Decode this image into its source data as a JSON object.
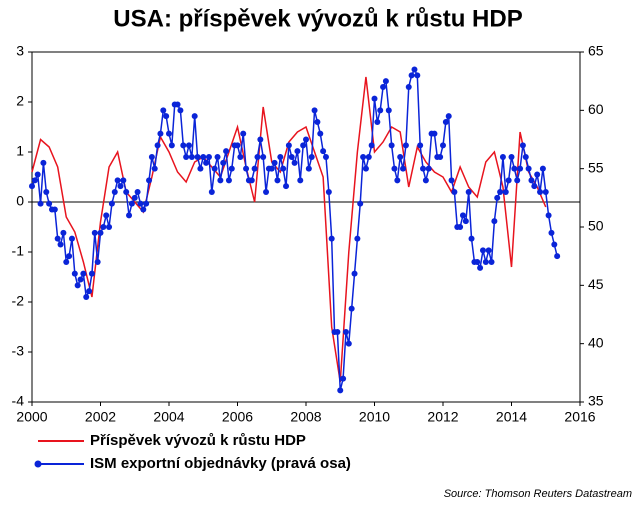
{
  "chart_data": {
    "type": "line",
    "title": "USA: příspěvek vývozů k růstu HDP",
    "source": "Source: Thomson Reuters Datastream",
    "xlim": [
      2000,
      2016
    ],
    "xticks": [
      2000,
      2002,
      2004,
      2006,
      2008,
      2010,
      2012,
      2014,
      2016
    ],
    "ylim": [
      -4,
      3
    ],
    "yticks": [
      -4,
      -3,
      -2,
      -1,
      0,
      1,
      2,
      3
    ],
    "y2lim": [
      35,
      65
    ],
    "y2ticks": [
      35,
      40,
      45,
      50,
      55,
      60,
      65
    ],
    "series": [
      {
        "name": "Příspěvek vývozů k růstu HDP",
        "color": "#e8141e",
        "markers": false,
        "x": [
          2000,
          2000.25,
          2000.5,
          2000.75,
          2001,
          2001.25,
          2001.5,
          2001.75,
          2002,
          2002.25,
          2002.5,
          2002.75,
          2003,
          2003.25,
          2003.5,
          2003.75,
          2004,
          2004.25,
          2004.5,
          2004.75,
          2005,
          2005.25,
          2005.5,
          2005.75,
          2006,
          2006.25,
          2006.5,
          2006.75,
          2007,
          2007.25,
          2007.5,
          2007.75,
          2008,
          2008.25,
          2008.5,
          2008.75,
          2009,
          2009.25,
          2009.5,
          2009.75,
          2010,
          2010.25,
          2010.5,
          2010.75,
          2011,
          2011.25,
          2011.5,
          2011.75,
          2012,
          2012.25,
          2012.5,
          2012.75,
          2013,
          2013.25,
          2013.5,
          2013.75,
          2014,
          2014.25,
          2014.5,
          2014.75,
          2015
        ],
        "values": [
          0.6,
          1.25,
          1.1,
          0.7,
          -0.3,
          -0.6,
          -1.2,
          -1.9,
          -0.4,
          0.7,
          1.0,
          0.2,
          0.0,
          -0.2,
          0.5,
          1.3,
          1.0,
          0.6,
          0.4,
          0.8,
          0.9,
          0.7,
          0.5,
          1.0,
          1.5,
          0.7,
          0.0,
          1.9,
          0.8,
          0.6,
          1.2,
          1.4,
          1.5,
          1.0,
          0.5,
          -2.5,
          -3.6,
          -1.0,
          1.0,
          2.5,
          1.0,
          1.2,
          1.5,
          1.4,
          0.3,
          1.1,
          0.8,
          0.6,
          0.5,
          0.2,
          0.7,
          0.3,
          0.1,
          0.8,
          1.0,
          0.3,
          -1.3,
          1.4,
          0.6,
          0.3,
          -0.1
        ]
      },
      {
        "name": "ISM exportní objednávky (pravá osa)",
        "color": "#0a24d8",
        "axis": "y2",
        "markers": true,
        "x": [
          2000,
          2000.083,
          2000.167,
          2000.25,
          2000.333,
          2000.417,
          2000.5,
          2000.583,
          2000.667,
          2000.75,
          2000.833,
          2000.917,
          2001,
          2001.083,
          2001.167,
          2001.25,
          2001.333,
          2001.417,
          2001.5,
          2001.583,
          2001.667,
          2001.75,
          2001.833,
          2001.917,
          2002,
          2002.083,
          2002.167,
          2002.25,
          2002.333,
          2002.417,
          2002.5,
          2002.583,
          2002.667,
          2002.75,
          2002.833,
          2002.917,
          2003,
          2003.083,
          2003.167,
          2003.25,
          2003.333,
          2003.417,
          2003.5,
          2003.583,
          2003.667,
          2003.75,
          2003.833,
          2003.917,
          2004,
          2004.083,
          2004.167,
          2004.25,
          2004.333,
          2004.417,
          2004.5,
          2004.583,
          2004.667,
          2004.75,
          2004.833,
          2004.917,
          2005,
          2005.083,
          2005.167,
          2005.25,
          2005.333,
          2005.417,
          2005.5,
          2005.583,
          2005.667,
          2005.75,
          2005.833,
          2005.917,
          2006,
          2006.083,
          2006.167,
          2006.25,
          2006.333,
          2006.417,
          2006.5,
          2006.583,
          2006.667,
          2006.75,
          2006.833,
          2006.917,
          2007,
          2007.083,
          2007.167,
          2007.25,
          2007.333,
          2007.417,
          2007.5,
          2007.583,
          2007.667,
          2007.75,
          2007.833,
          2007.917,
          2008,
          2008.083,
          2008.167,
          2008.25,
          2008.333,
          2008.417,
          2008.5,
          2008.583,
          2008.667,
          2008.75,
          2008.833,
          2008.917,
          2009,
          2009.083,
          2009.167,
          2009.25,
          2009.333,
          2009.417,
          2009.5,
          2009.583,
          2009.667,
          2009.75,
          2009.833,
          2009.917,
          2010,
          2010.083,
          2010.167,
          2010.25,
          2010.333,
          2010.417,
          2010.5,
          2010.583,
          2010.667,
          2010.75,
          2010.833,
          2010.917,
          2011,
          2011.083,
          2011.167,
          2011.25,
          2011.333,
          2011.417,
          2011.5,
          2011.583,
          2011.667,
          2011.75,
          2011.833,
          2011.917,
          2012,
          2012.083,
          2012.167,
          2012.25,
          2012.333,
          2012.417,
          2012.5,
          2012.583,
          2012.667,
          2012.75,
          2012.833,
          2012.917,
          2013,
          2013.083,
          2013.167,
          2013.25,
          2013.333,
          2013.417,
          2013.5,
          2013.583,
          2013.667,
          2013.75,
          2013.833,
          2013.917,
          2014,
          2014.083,
          2014.167,
          2014.25,
          2014.333,
          2014.417,
          2014.5,
          2014.583,
          2014.667,
          2014.75,
          2014.833,
          2014.917,
          2015,
          2015.083,
          2015.167,
          2015.25,
          2015.333
        ],
        "values": [
          53.5,
          54,
          54.5,
          52,
          55.5,
          53,
          52,
          51.5,
          51.5,
          49,
          48.5,
          49.5,
          47,
          47.5,
          49,
          46,
          45,
          45.5,
          46,
          44,
          44.5,
          46,
          49.5,
          47,
          49.5,
          50,
          51,
          50,
          52,
          53,
          54,
          53.5,
          54,
          53,
          51,
          52,
          52.5,
          53,
          52,
          51.5,
          52,
          54,
          56,
          55,
          57,
          58,
          60,
          59.5,
          58,
          57,
          60.5,
          60.5,
          60,
          57,
          56,
          57,
          56,
          59.5,
          56,
          55,
          56,
          55.5,
          56,
          53,
          55,
          56,
          54,
          55.5,
          56.5,
          54,
          55,
          57,
          57,
          56,
          58,
          55,
          54,
          54,
          55,
          56,
          57.5,
          56,
          53,
          55,
          55,
          55.5,
          54,
          56,
          55,
          53.5,
          57,
          56,
          55.5,
          56.5,
          54,
          57,
          57.5,
          55,
          56,
          60,
          59,
          58,
          56.5,
          56,
          53,
          49,
          41,
          41,
          36,
          37,
          41,
          40,
          43,
          46,
          49,
          52,
          56,
          55,
          56,
          57,
          61,
          59,
          60,
          62,
          62.5,
          60,
          57,
          55,
          54,
          56,
          55,
          57,
          62,
          63,
          63.5,
          63,
          57,
          55,
          54,
          55,
          58,
          58,
          56,
          56,
          57,
          59,
          59.5,
          54,
          53,
          50,
          50,
          51,
          50.5,
          53,
          49,
          47,
          47,
          46.5,
          48,
          47,
          48,
          47,
          50.5,
          52.5,
          53,
          56,
          53,
          54,
          56,
          55,
          54,
          55,
          57,
          56,
          55,
          54,
          53.5,
          54.5,
          53,
          55,
          53,
          51,
          49.5,
          48.5,
          47.5
        ]
      }
    ]
  }
}
